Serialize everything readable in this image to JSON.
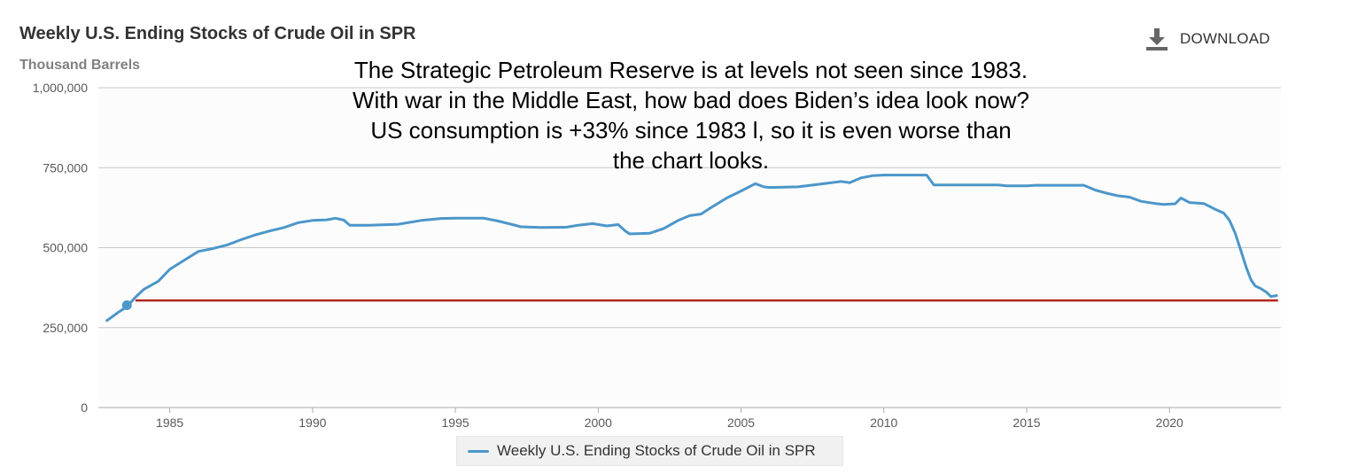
{
  "header": {
    "title": "Weekly U.S. Ending Stocks of Crude Oil in SPR",
    "unit_label": "Thousand Barrels",
    "download_label": "DOWNLOAD",
    "download_icon": "download-icon"
  },
  "annotation": {
    "text": "The Strategic Petroleum Reserve is at levels not seen since 1983.\nWith war in the Middle East, how bad does Biden’s idea look now?\nUS consumption is +33% since 1983 l, so it is even worse than\nthe chart looks."
  },
  "legend": {
    "label": "Weekly U.S. Ending Stocks of Crude Oil in SPR"
  },
  "colors": {
    "series": "#4c96c9",
    "reference_line": "#b5261e",
    "grid": "#c8c8c8",
    "plot_background": "#fcfcfc",
    "axis_text": "#595959"
  },
  "chart_data": {
    "type": "line",
    "title": "Weekly U.S. Ending Stocks of Crude Oil in SPR",
    "ylabel": "Thousand Barrels",
    "xlabel": "",
    "xlim": [
      1982.5,
      2023.9
    ],
    "ylim": [
      0,
      1000000
    ],
    "x_ticks": [
      1985,
      1990,
      1995,
      2000,
      2005,
      2010,
      2015,
      2020
    ],
    "y_ticks": [
      {
        "value": 0,
        "label": "0"
      },
      {
        "value": 250000,
        "label": "250,000"
      },
      {
        "value": 500000,
        "label": "500,000"
      },
      {
        "value": 750000,
        "label": "750,000"
      },
      {
        "value": 1000000,
        "label": "1,000,000"
      }
    ],
    "grid": true,
    "legend_position": "bottom-center",
    "series": [
      {
        "name": "Weekly U.S. Ending Stocks of Crude Oil in SPR",
        "points": [
          [
            1982.8,
            272000
          ],
          [
            1983.2,
            298000
          ],
          [
            1983.5,
            315000
          ],
          [
            1983.8,
            345000
          ],
          [
            1984.1,
            370000
          ],
          [
            1984.6,
            395000
          ],
          [
            1985.0,
            432000
          ],
          [
            1985.5,
            460000
          ],
          [
            1986.0,
            488000
          ],
          [
            1986.5,
            497000
          ],
          [
            1987.0,
            508000
          ],
          [
            1987.5,
            525000
          ],
          [
            1988.0,
            540000
          ],
          [
            1988.5,
            552000
          ],
          [
            1989.0,
            563000
          ],
          [
            1989.5,
            578000
          ],
          [
            1990.0,
            585000
          ],
          [
            1990.5,
            587000
          ],
          [
            1990.8,
            592000
          ],
          [
            1991.1,
            586000
          ],
          [
            1991.3,
            570000
          ],
          [
            1992.0,
            570000
          ],
          [
            1993.0,
            573000
          ],
          [
            1993.8,
            585000
          ],
          [
            1994.5,
            591000
          ],
          [
            1995.0,
            592000
          ],
          [
            1996.0,
            592000
          ],
          [
            1996.5,
            583000
          ],
          [
            1997.0,
            572000
          ],
          [
            1997.3,
            565000
          ],
          [
            1998.0,
            563000
          ],
          [
            1998.9,
            564000
          ],
          [
            1999.3,
            570000
          ],
          [
            1999.8,
            575000
          ],
          [
            2000.3,
            568000
          ],
          [
            2000.7,
            572000
          ],
          [
            2000.95,
            552000
          ],
          [
            2001.1,
            543000
          ],
          [
            2001.8,
            545000
          ],
          [
            2002.3,
            560000
          ],
          [
            2002.8,
            585000
          ],
          [
            2003.2,
            600000
          ],
          [
            2003.6,
            605000
          ],
          [
            2004.0,
            628000
          ],
          [
            2004.5,
            655000
          ],
          [
            2005.0,
            677000
          ],
          [
            2005.5,
            700000
          ],
          [
            2005.8,
            690000
          ],
          [
            2006.0,
            688000
          ],
          [
            2007.0,
            690000
          ],
          [
            2008.0,
            701000
          ],
          [
            2008.5,
            707000
          ],
          [
            2008.8,
            703000
          ],
          [
            2009.2,
            718000
          ],
          [
            2009.6,
            725000
          ],
          [
            2010.0,
            727000
          ],
          [
            2011.0,
            727000
          ],
          [
            2011.5,
            727000
          ],
          [
            2011.75,
            696000
          ],
          [
            2013.0,
            696000
          ],
          [
            2014.0,
            696000
          ],
          [
            2014.3,
            693000
          ],
          [
            2015.0,
            693000
          ],
          [
            2015.3,
            695000
          ],
          [
            2016.0,
            695000
          ],
          [
            2017.0,
            695000
          ],
          [
            2017.4,
            680000
          ],
          [
            2017.8,
            670000
          ],
          [
            2018.2,
            662000
          ],
          [
            2018.6,
            658000
          ],
          [
            2019.0,
            645000
          ],
          [
            2019.5,
            638000
          ],
          [
            2019.8,
            635000
          ],
          [
            2020.2,
            637000
          ],
          [
            2020.4,
            655000
          ],
          [
            2020.7,
            641000
          ],
          [
            2021.2,
            638000
          ],
          [
            2021.6,
            620000
          ],
          [
            2021.9,
            608000
          ],
          [
            2022.1,
            585000
          ],
          [
            2022.3,
            545000
          ],
          [
            2022.5,
            490000
          ],
          [
            2022.7,
            435000
          ],
          [
            2022.85,
            400000
          ],
          [
            2023.0,
            380000
          ],
          [
            2023.2,
            372000
          ],
          [
            2023.4,
            360000
          ],
          [
            2023.55,
            347000
          ],
          [
            2023.75,
            350000
          ]
        ]
      }
    ],
    "reference_line": {
      "y": 335000,
      "x_start": 1983.8,
      "x_end": 2023.8
    },
    "highlight_point": [
      1983.5,
      320000
    ]
  }
}
